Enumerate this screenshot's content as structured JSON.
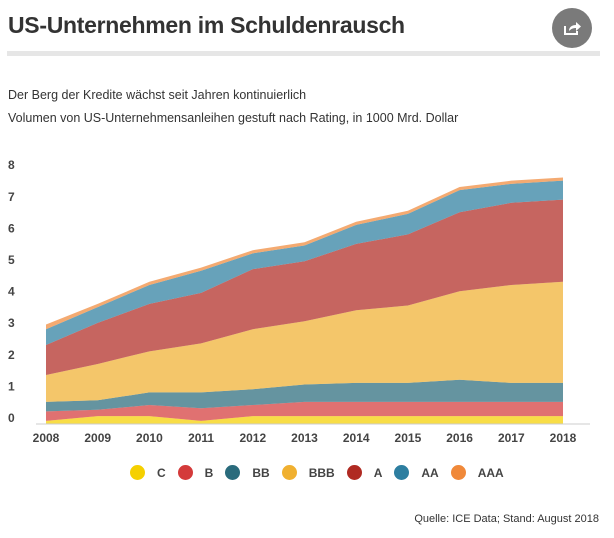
{
  "header": {
    "title": "US-Unternehmen im Schuldenrausch",
    "share_icon": "share-icon"
  },
  "subtitle": {
    "line1": "Der Berg der Kredite wächst seit Jahren kontinuierlich",
    "line2": "Volumen von US-Unternehmensanleihen gestuft nach Rating, in 1000 Mrd. Dollar"
  },
  "source": "Quelle: ICE Data; Stand: August 2018",
  "chart_data": {
    "type": "area",
    "stacked": true,
    "title": "Volumen von US-Unternehmensanleihen gestuft nach Rating, in 1000 Mrd. Dollar",
    "x": [
      "2008",
      "2009",
      "2010",
      "2011",
      "2012",
      "2013",
      "2014",
      "2015",
      "2016",
      "2017",
      "2018"
    ],
    "yticks": [
      "0",
      "1",
      "2",
      "3",
      "4",
      "5",
      "6",
      "7",
      "8"
    ],
    "ylim": [
      0,
      8
    ],
    "grid": false,
    "legend_position": "bottom",
    "series": [
      {
        "name": "C",
        "color": "#f5d000",
        "values": [
          0.1,
          0.25,
          0.25,
          0.1,
          0.25,
          0.25,
          0.25,
          0.25,
          0.25,
          0.25,
          0.25
        ]
      },
      {
        "name": "B",
        "color": "#d43a3a",
        "values": [
          0.3,
          0.2,
          0.35,
          0.4,
          0.35,
          0.45,
          0.45,
          0.45,
          0.45,
          0.45,
          0.45
        ]
      },
      {
        "name": "BB",
        "color": "#2a6b7c",
        "values": [
          0.3,
          0.3,
          0.4,
          0.5,
          0.5,
          0.55,
          0.6,
          0.6,
          0.7,
          0.6,
          0.6
        ]
      },
      {
        "name": "BBB",
        "color": "#f0b030",
        "values": [
          0.85,
          1.15,
          1.3,
          1.55,
          1.9,
          2.0,
          2.3,
          2.45,
          2.8,
          3.1,
          3.2
        ]
      },
      {
        "name": "A",
        "color": "#b02a22",
        "values": [
          0.95,
          1.3,
          1.5,
          1.6,
          1.9,
          1.9,
          2.1,
          2.25,
          2.5,
          2.6,
          2.6
        ]
      },
      {
        "name": "AA",
        "color": "#2d7ea0",
        "values": [
          0.5,
          0.5,
          0.6,
          0.7,
          0.5,
          0.5,
          0.6,
          0.65,
          0.7,
          0.6,
          0.6
        ]
      },
      {
        "name": "AAA",
        "color": "#f0893a",
        "values": [
          0.15,
          0.1,
          0.1,
          0.1,
          0.1,
          0.1,
          0.1,
          0.1,
          0.1,
          0.1,
          0.1
        ]
      }
    ]
  }
}
